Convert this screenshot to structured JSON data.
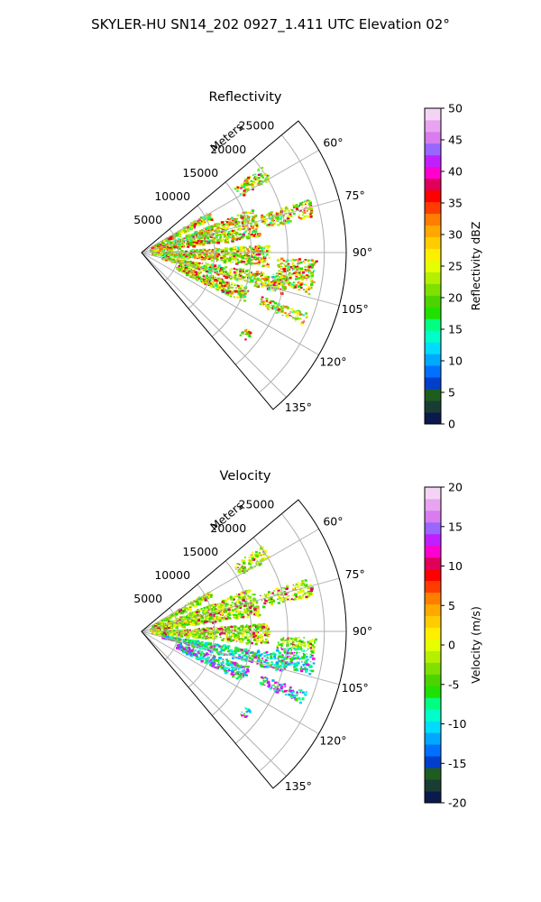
{
  "figure": {
    "title": "SKYLER-HU  SN14_202  0927_1.411 UTC Elevation 02°"
  },
  "chart_data": [
    {
      "type": "polar-sector",
      "title": "Reflectivity",
      "range_label": "Meters",
      "range_ticks": [
        5000,
        10000,
        15000,
        20000,
        25000
      ],
      "range_max": 28000,
      "azimuth_ticks": [
        "60°",
        "75°",
        "90°",
        "105°",
        "120°",
        "135°"
      ],
      "azimuth_range_deg": [
        50,
        140
      ],
      "colorbar": {
        "label": "Reflectivity dBZ",
        "min": 0,
        "max": 50,
        "ticks": [
          0,
          5,
          10,
          15,
          20,
          25,
          30,
          35,
          40,
          45,
          50
        ],
        "colors": [
          "#0a1a4d",
          "#1a3d33",
          "#1f5c1f",
          "#003fcc",
          "#0070ff",
          "#00a8ff",
          "#00dcff",
          "#00ffc8",
          "#00ff80",
          "#20e000",
          "#4cd400",
          "#80e000",
          "#b4f000",
          "#e6ff00",
          "#ffee00",
          "#ffcc00",
          "#ffa800",
          "#ff7e00",
          "#ff3c00",
          "#ff0000",
          "#e0005a",
          "#ff00d0",
          "#c020ff",
          "#9966ff",
          "#d87cf0",
          "#e8a4f0",
          "#f4d4f4"
        ]
      }
    },
    {
      "type": "polar-sector",
      "title": "Velocity",
      "range_label": "Meters",
      "range_ticks": [
        5000,
        10000,
        15000,
        20000,
        25000
      ],
      "range_max": 28000,
      "azimuth_ticks": [
        "60°",
        "75°",
        "90°",
        "105°",
        "120°",
        "135°"
      ],
      "azimuth_range_deg": [
        50,
        140
      ],
      "colorbar": {
        "label": "Velocity (m/s)",
        "min": -20,
        "max": 20,
        "ticks": [
          -20,
          -15,
          -10,
          -5,
          0,
          5,
          10,
          15,
          20
        ],
        "colors": [
          "#0a1a4d",
          "#1a3d33",
          "#1f5c1f",
          "#003fcc",
          "#0070ff",
          "#00a8ff",
          "#00dcff",
          "#00ffc8",
          "#00ff80",
          "#20e000",
          "#4cd400",
          "#80e000",
          "#b4f000",
          "#e6ff00",
          "#ffee00",
          "#ffcc00",
          "#ffa800",
          "#ff7e00",
          "#ff3c00",
          "#ff0000",
          "#e0005a",
          "#ff00d0",
          "#c020ff",
          "#9966ff",
          "#d87cf0",
          "#e8a4f0",
          "#f4d4f4"
        ]
      }
    }
  ],
  "colors": {
    "grid": "#b0b0b0",
    "axis": "#000000"
  }
}
